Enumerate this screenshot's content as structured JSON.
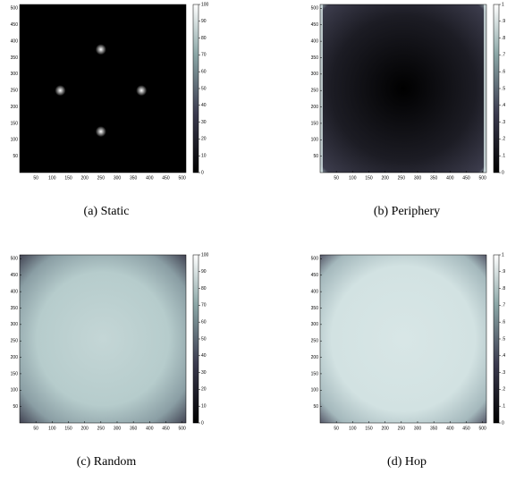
{
  "chart_data": [
    {
      "type": "heatmap",
      "caption": "(a) Static",
      "xlim": [
        0,
        512
      ],
      "ylim": [
        0,
        512
      ],
      "xticks": [
        50,
        100,
        150,
        200,
        250,
        300,
        350,
        400,
        450,
        500
      ],
      "yticks": [
        50,
        100,
        150,
        200,
        250,
        300,
        350,
        400,
        450,
        500
      ],
      "clim": [
        0,
        100
      ],
      "cticks": [
        0,
        10,
        20,
        30,
        40,
        50,
        60,
        70,
        80,
        90,
        100
      ]
    },
    {
      "type": "heatmap",
      "caption": "(b) Periphery",
      "xlim": [
        0,
        512
      ],
      "ylim": [
        0,
        512
      ],
      "xticks": [
        50,
        100,
        150,
        200,
        250,
        300,
        350,
        400,
        450,
        500
      ],
      "yticks": [
        50,
        100,
        150,
        200,
        250,
        300,
        350,
        400,
        450,
        500
      ],
      "clim": [
        0,
        1
      ],
      "cticks": [
        0,
        {
          "value": 0.1,
          "label": ".1"
        },
        {
          "value": 0.2,
          "label": ".2"
        },
        {
          "value": 0.3,
          "label": ".3"
        },
        {
          "value": 0.4,
          "label": ".4"
        },
        {
          "value": 0.5,
          "label": ".5"
        },
        {
          "value": 0.6,
          "label": ".6"
        },
        {
          "value": 0.7,
          "label": ".7"
        },
        {
          "value": 0.8,
          "label": ".8"
        },
        {
          "value": 0.9,
          "label": ".9"
        },
        1
      ]
    },
    {
      "type": "heatmap",
      "caption": "(c) Random",
      "xlim": [
        0,
        512
      ],
      "ylim": [
        0,
        512
      ],
      "xticks": [
        50,
        100,
        150,
        200,
        250,
        300,
        350,
        400,
        450,
        500
      ],
      "yticks": [
        50,
        100,
        150,
        200,
        250,
        300,
        350,
        400,
        450,
        500
      ],
      "clim": [
        0,
        100
      ],
      "cticks": [
        0,
        10,
        20,
        30,
        40,
        50,
        60,
        70,
        80,
        90,
        100
      ]
    },
    {
      "type": "heatmap",
      "caption": "(d) Hop",
      "xlim": [
        0,
        512
      ],
      "ylim": [
        0,
        512
      ],
      "xticks": [
        50,
        100,
        150,
        200,
        250,
        300,
        350,
        400,
        450,
        500
      ],
      "yticks": [
        50,
        100,
        150,
        200,
        250,
        300,
        350,
        400,
        450,
        500
      ],
      "clim": [
        0,
        1
      ],
      "cticks": [
        0,
        {
          "value": 0.1,
          "label": ".1"
        },
        {
          "value": 0.2,
          "label": ".2"
        },
        {
          "value": 0.3,
          "label": ".3"
        },
        {
          "value": 0.4,
          "label": ".4"
        },
        {
          "value": 0.5,
          "label": ".5"
        },
        {
          "value": 0.6,
          "label": ".6"
        },
        {
          "value": 0.7,
          "label": ".7"
        },
        {
          "value": 0.8,
          "label": ".8"
        },
        {
          "value": 0.9,
          "label": ".9"
        },
        1
      ]
    }
  ]
}
